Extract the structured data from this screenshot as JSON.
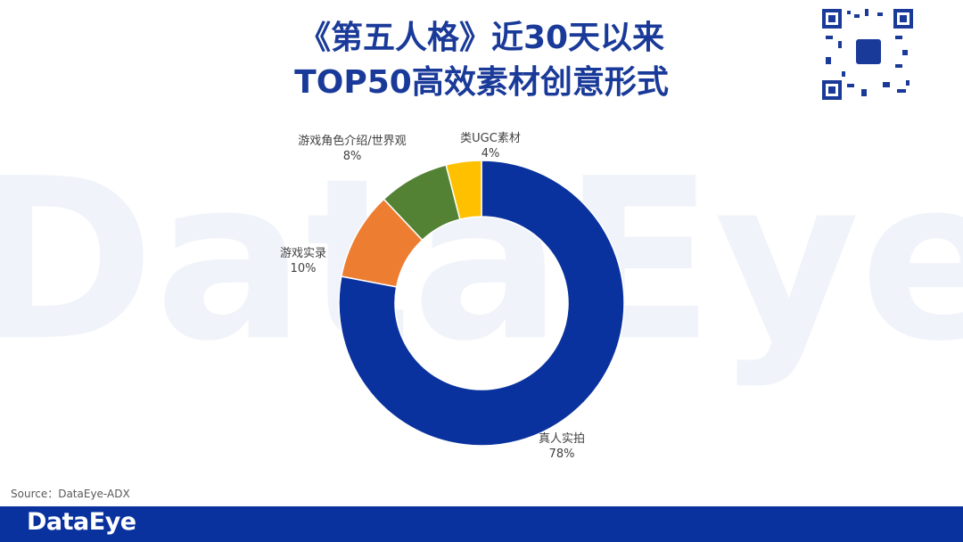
{
  "chart_data": {
    "type": "donut",
    "title_lines": [
      "《第五人格》近30天以来",
      "TOP50高效素材创意形式"
    ],
    "categories": [
      "真人实拍",
      "游戏实录",
      "游戏角色介绍/世界观",
      "类UGC素材"
    ],
    "values": [
      78,
      10,
      8,
      4
    ],
    "value_labels": [
      "78%",
      "10%",
      "8%",
      "4%"
    ],
    "colors": [
      "#0a329e",
      "#ed7d31",
      "#548235",
      "#ffc000"
    ],
    "source": "Source：DataEye-ADX",
    "watermark": "DataEye",
    "logo": "DataEye"
  }
}
